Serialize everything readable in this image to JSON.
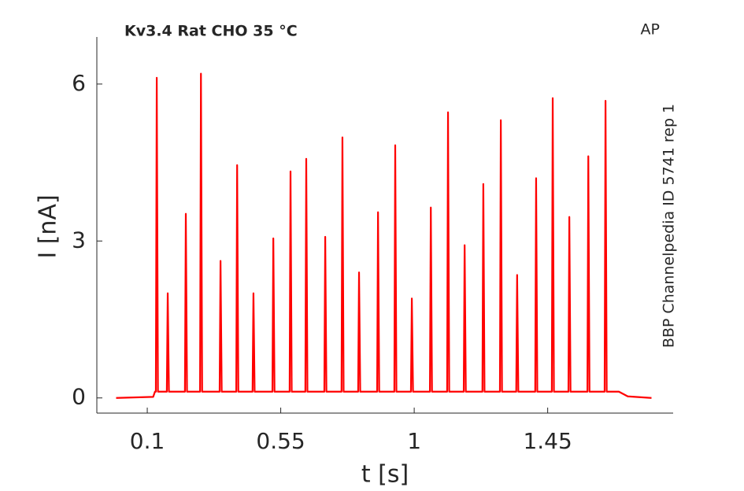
{
  "chart_data": {
    "type": "line",
    "title": "Kv3.4  Rat  CHO  35 °C",
    "annotations": [
      "AP",
      "BBP Channelpedia ID 5741 rep 1"
    ],
    "xlabel": "t [s]",
    "ylabel": "I [nA]",
    "xlim": [
      -0.07,
      1.873
    ],
    "ylim": [
      -0.29,
      6.9
    ],
    "xticks": [
      0.1,
      0.55,
      1,
      1.45
    ],
    "yticks": [
      0,
      3,
      6
    ],
    "x": [
      -0.005,
      0.12,
      0.126,
      0.129,
      0.132,
      0.136,
      0.166,
      0.169,
      0.173,
      0.227,
      0.23,
      0.234,
      0.278,
      0.281,
      0.285,
      0.344,
      0.347,
      0.351,
      0.4,
      0.403,
      0.407,
      0.455,
      0.458,
      0.462,
      0.522,
      0.525,
      0.529,
      0.58,
      0.583,
      0.587,
      0.633,
      0.636,
      0.64,
      0.697,
      0.7,
      0.704,
      0.755,
      0.758,
      0.762,
      0.811,
      0.814,
      0.818,
      0.875,
      0.878,
      0.882,
      0.933,
      0.936,
      0.94,
      0.989,
      0.992,
      0.996,
      1.053,
      1.056,
      1.06,
      1.111,
      1.114,
      1.118,
      1.167,
      1.17,
      1.174,
      1.23,
      1.233,
      1.237,
      1.289,
      1.292,
      1.296,
      1.344,
      1.347,
      1.351,
      1.408,
      1.411,
      1.415,
      1.464,
      1.467,
      1.471,
      1.52,
      1.523,
      1.527,
      1.584,
      1.587,
      1.591,
      1.642,
      1.645,
      1.649,
      1.69,
      1.72,
      1.8
    ],
    "series": [
      {
        "color": "#ff0000",
        "values": [
          0,
          0.02,
          0.12,
          0.12,
          6.12,
          0.12,
          0.12,
          2.0,
          0.12,
          0.12,
          3.52,
          0.12,
          0.12,
          6.2,
          0.12,
          0.12,
          2.62,
          0.12,
          0.12,
          4.45,
          0.12,
          0.12,
          2.0,
          0.12,
          0.12,
          3.05,
          0.12,
          0.12,
          4.33,
          0.12,
          0.12,
          4.57,
          0.12,
          0.12,
          3.08,
          0.12,
          0.12,
          4.98,
          0.12,
          0.12,
          2.4,
          0.12,
          0.12,
          3.55,
          0.12,
          0.12,
          4.83,
          0.12,
          0.12,
          1.9,
          0.12,
          0.12,
          3.64,
          0.12,
          0.12,
          5.46,
          0.12,
          0.12,
          2.92,
          0.12,
          0.12,
          4.09,
          0.12,
          0.12,
          5.31,
          0.12,
          0.12,
          2.35,
          0.12,
          0.12,
          4.2,
          0.12,
          0.12,
          5.73,
          0.12,
          0.12,
          3.46,
          0.12,
          0.12,
          4.62,
          0.12,
          0.12,
          5.68,
          0.12,
          0.12,
          0.03,
          0
        ]
      }
    ]
  }
}
